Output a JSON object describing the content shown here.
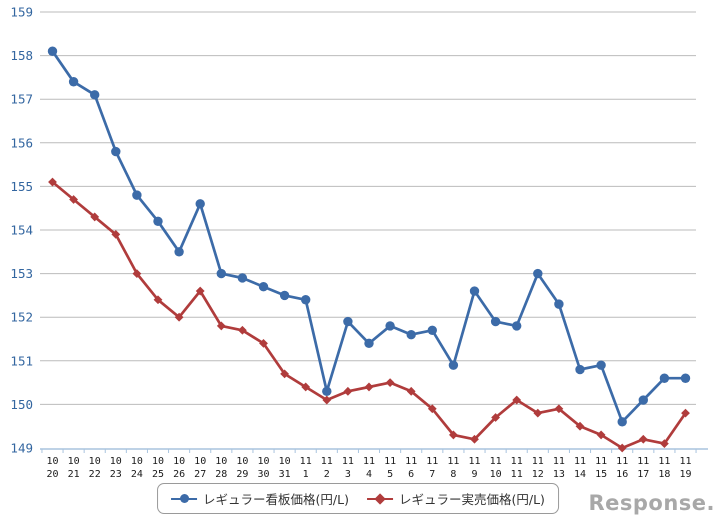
{
  "chart_data": {
    "type": "line",
    "title": "",
    "xlabel": "",
    "ylabel": "",
    "ylim": [
      149,
      159
    ],
    "ytick_step": 1,
    "grid": true,
    "legend_position": "bottom",
    "categories": [
      "10/20",
      "10/21",
      "10/22",
      "10/23",
      "10/24",
      "10/25",
      "10/26",
      "10/27",
      "10/28",
      "10/29",
      "10/30",
      "10/31",
      "11/1",
      "11/2",
      "11/3",
      "11/4",
      "11/5",
      "11/6",
      "11/7",
      "11/8",
      "11/9",
      "11/10",
      "11/11",
      "11/12",
      "11/13",
      "11/14",
      "11/15",
      "11/16",
      "11/17",
      "11/18",
      "11/19"
    ],
    "series": [
      {
        "name": "レギュラー看板価格(円/L)",
        "marker": "circle",
        "color": "#3C6BA8",
        "values": [
          158.1,
          157.4,
          157.1,
          155.8,
          154.8,
          154.2,
          153.5,
          154.6,
          153.0,
          152.9,
          152.7,
          152.5,
          152.4,
          150.3,
          151.9,
          151.4,
          151.8,
          151.6,
          151.7,
          150.9,
          152.6,
          151.9,
          151.8,
          153.0,
          152.3,
          150.8,
          150.9,
          149.6,
          150.1,
          150.6,
          150.6
        ]
      },
      {
        "name": "レギュラー実売価格(円/L)",
        "marker": "diamond",
        "color": "#B03C3C",
        "values": [
          155.1,
          154.7,
          154.3,
          153.9,
          153.0,
          152.4,
          152.0,
          152.6,
          151.8,
          151.7,
          151.4,
          150.7,
          150.4,
          150.1,
          150.3,
          150.4,
          150.5,
          150.3,
          149.9,
          149.3,
          149.2,
          149.7,
          150.1,
          149.8,
          149.9,
          149.5,
          149.3,
          149.0,
          149.2,
          149.1,
          149.8
        ]
      }
    ]
  },
  "colors": {
    "gridline": "#BBBBBB",
    "axis_line": "#A9C4DE",
    "y_label": "#3366A0",
    "x_label": "#1A1A1A"
  },
  "watermark": "Response."
}
